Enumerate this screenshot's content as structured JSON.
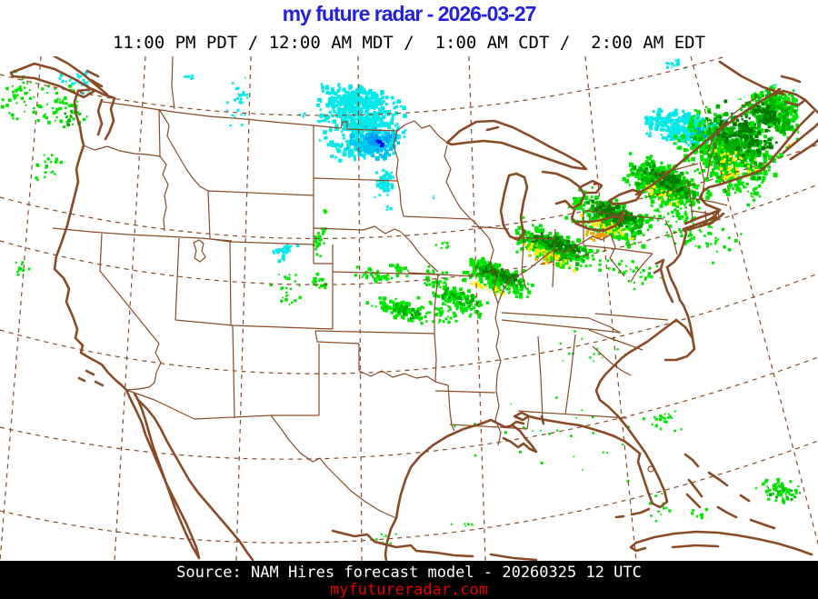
{
  "title": {
    "text": "my future radar - 2026-03-27",
    "color": "#2222dd"
  },
  "subtitle": "11:00 PM PDT / 12:00 AM MDT /  1:00 AM CDT /  2:00 AM EDT",
  "footer": {
    "source": "Source: NAM Hires forecast model - 20260325 12 UTC",
    "website": "myfutureradar.com",
    "source_color": "#ffffff",
    "website_color": "#e00000",
    "bar_color": "#000000"
  },
  "map": {
    "background": "#ffffff",
    "line_color": "#8a4a26",
    "palette": {
      "lg": "#04e304",
      "mg": "#02b002",
      "dg": "#027a02",
      "yl": "#fdec02",
      "gd": "#e5b500",
      "or": "#fd9500",
      "rd": "#f40000",
      "cy": "#04e9e7",
      "c2": "#00c4f0",
      "bl": "#0197f4",
      "db": "#0303f4"
    },
    "precip_cells": [
      {
        "c": [
          400,
          138
        ],
        "r": [
          50,
          40
        ],
        "rot": -5,
        "n": 420,
        "s": 3.4,
        "col": "cy"
      },
      {
        "c": [
          385,
          112
        ],
        "r": [
          38,
          22
        ],
        "rot": 0,
        "n": 200,
        "s": 3.2,
        "col": "cy"
      },
      {
        "c": [
          412,
          155
        ],
        "r": [
          30,
          20
        ],
        "rot": 10,
        "n": 120,
        "s": 3.4,
        "col": "c2"
      },
      {
        "c": [
          415,
          156
        ],
        "r": [
          14,
          9
        ],
        "rot": 10,
        "n": 26,
        "s": 3,
        "col": "bl"
      },
      {
        "c": [
          419,
          158
        ],
        "r": [
          6,
          4
        ],
        "rot": 0,
        "n": 7,
        "s": 2.6,
        "col": "db"
      },
      {
        "c": [
          424,
          200
        ],
        "r": [
          11,
          20
        ],
        "rot": 5,
        "n": 60,
        "s": 3,
        "col": "cy"
      },
      {
        "c": [
          427,
          230
        ],
        "r": [
          4,
          4
        ],
        "rot": 0,
        "n": 4,
        "s": 2.6,
        "col": "cy"
      },
      {
        "c": [
          355,
          133
        ],
        "r": [
          7,
          5
        ],
        "rot": 0,
        "n": 6,
        "s": 2.4,
        "col": "cy"
      },
      {
        "c": [
          477,
          217
        ],
        "r": [
          3,
          2
        ],
        "rot": 0,
        "n": 2,
        "s": 2.2,
        "col": "cy"
      },
      {
        "c": [
          333,
          127
        ],
        "r": [
          6,
          4
        ],
        "rot": 0,
        "n": 5,
        "s": 2.2,
        "col": "cy"
      },
      {
        "c": [
          755,
          142
        ],
        "r": [
          46,
          21
        ],
        "rot": 8,
        "n": 260,
        "s": 3.3,
        "col": "cy"
      },
      {
        "c": [
          772,
          146
        ],
        "r": [
          17,
          8
        ],
        "rot": 8,
        "n": 18,
        "s": 2.6,
        "col": "bl"
      },
      {
        "c": [
          722,
          132
        ],
        "r": [
          14,
          11
        ],
        "rot": 0,
        "n": 25,
        "s": 2.6,
        "col": "cy"
      },
      {
        "c": [
          745,
          72
        ],
        "r": [
          16,
          8
        ],
        "rot": 0,
        "n": 16,
        "s": 2.4,
        "col": "cy"
      },
      {
        "c": [
          848,
          92
        ],
        "r": [
          16,
          6
        ],
        "rot": 10,
        "n": 14,
        "s": 2.4,
        "col": "cy"
      },
      {
        "c": [
          262,
          112
        ],
        "r": [
          20,
          30
        ],
        "rot": 0,
        "n": 26,
        "s": 2.4,
        "col": "cy"
      },
      {
        "c": [
          205,
          83
        ],
        "r": [
          12,
          5
        ],
        "rot": 0,
        "n": 7,
        "s": 2.2,
        "col": "cy"
      },
      {
        "c": [
          88,
          90
        ],
        "r": [
          26,
          13
        ],
        "rot": 15,
        "n": 30,
        "s": 2.6,
        "col": "cy"
      },
      {
        "c": [
          314,
          275
        ],
        "r": [
          17,
          10
        ],
        "rot": -30,
        "n": 30,
        "s": 2.8,
        "col": "cy"
      },
      {
        "c": [
          24,
          105
        ],
        "r": [
          26,
          32
        ],
        "rot": 0,
        "n": 40,
        "s": 2.6,
        "col": "lg"
      },
      {
        "c": [
          68,
          118
        ],
        "r": [
          30,
          26
        ],
        "rot": 0,
        "n": 55,
        "s": 2.8,
        "col": "lg"
      },
      {
        "c": [
          80,
          128
        ],
        "r": [
          14,
          10
        ],
        "rot": 0,
        "n": 10,
        "s": 2.6,
        "col": "mg"
      },
      {
        "c": [
          52,
          185
        ],
        "r": [
          17,
          22
        ],
        "rot": 0,
        "n": 22,
        "s": 2.4,
        "col": "lg"
      },
      {
        "c": [
          22,
          298
        ],
        "r": [
          15,
          11
        ],
        "rot": 0,
        "n": 12,
        "s": 2.4,
        "col": "lg"
      },
      {
        "c": [
          352,
          265
        ],
        "r": [
          8,
          23
        ],
        "rot": 12,
        "n": 30,
        "s": 2.6,
        "col": "lg"
      },
      {
        "c": [
          350,
          310
        ],
        "r": [
          16,
          8
        ],
        "rot": 30,
        "n": 22,
        "s": 2.6,
        "col": "lg"
      },
      {
        "c": [
          315,
          320
        ],
        "r": [
          18,
          22
        ],
        "rot": 0,
        "n": 24,
        "s": 2.4,
        "col": "lg"
      },
      {
        "c": [
          360,
          233
        ],
        "r": [
          5,
          4
        ],
        "rot": 0,
        "n": 4,
        "s": 2.2,
        "col": "lg"
      },
      {
        "c": [
          413,
          303
        ],
        "r": [
          27,
          7
        ],
        "rot": 12,
        "n": 40,
        "s": 2.6,
        "col": "lg"
      },
      {
        "c": [
          440,
          297
        ],
        "r": [
          16,
          6
        ],
        "rot": 25,
        "n": 20,
        "s": 2.6,
        "col": "lg"
      },
      {
        "c": [
          438,
          340
        ],
        "r": [
          36,
          11
        ],
        "rot": 18,
        "n": 90,
        "s": 3,
        "col": "lg"
      },
      {
        "c": [
          445,
          342
        ],
        "r": [
          22,
          7
        ],
        "rot": 18,
        "n": 25,
        "s": 2.8,
        "col": "mg"
      },
      {
        "c": [
          482,
          308
        ],
        "r": [
          20,
          12
        ],
        "rot": 20,
        "n": 35,
        "s": 2.6,
        "col": "lg"
      },
      {
        "c": [
          487,
          270
        ],
        "r": [
          10,
          6
        ],
        "rot": 0,
        "n": 8,
        "s": 2.2,
        "col": "lg"
      },
      {
        "c": [
          480,
          345
        ],
        "r": [
          30,
          14
        ],
        "rot": 20,
        "n": 40,
        "s": 2.4,
        "col": "lg"
      },
      {
        "c": [
          505,
          330
        ],
        "r": [
          34,
          14
        ],
        "rot": 20,
        "n": 110,
        "s": 3,
        "col": "lg"
      },
      {
        "c": [
          508,
          328
        ],
        "r": [
          22,
          8
        ],
        "rot": 20,
        "n": 30,
        "s": 2.8,
        "col": "mg"
      },
      {
        "c": [
          548,
          306
        ],
        "r": [
          42,
          18
        ],
        "rot": 20,
        "n": 180,
        "s": 3.2,
        "col": "lg"
      },
      {
        "c": [
          550,
          304
        ],
        "r": [
          34,
          11
        ],
        "rot": 20,
        "n": 80,
        "s": 3.2,
        "col": "mg"
      },
      {
        "c": [
          552,
          302
        ],
        "r": [
          26,
          7
        ],
        "rot": 20,
        "n": 35,
        "s": 3,
        "col": "dg"
      },
      {
        "c": [
          537,
          318
        ],
        "r": [
          26,
          6
        ],
        "rot": 20,
        "n": 30,
        "s": 2.4,
        "col": "yl"
      },
      {
        "c": [
          608,
          272
        ],
        "r": [
          48,
          20
        ],
        "rot": 22,
        "n": 220,
        "s": 3.4,
        "col": "lg"
      },
      {
        "c": [
          610,
          270
        ],
        "r": [
          40,
          13
        ],
        "rot": 22,
        "n": 110,
        "s": 3.3,
        "col": "mg"
      },
      {
        "c": [
          612,
          268
        ],
        "r": [
          30,
          8
        ],
        "rot": 22,
        "n": 45,
        "s": 3,
        "col": "dg"
      },
      {
        "c": [
          604,
          280
        ],
        "r": [
          34,
          7
        ],
        "rot": 22,
        "n": 40,
        "s": 2.4,
        "col": "yl"
      },
      {
        "c": [
          600,
          287
        ],
        "r": [
          20,
          5
        ],
        "rot": 22,
        "n": 12,
        "s": 2.4,
        "col": "gd"
      },
      {
        "c": [
          672,
          240
        ],
        "r": [
          50,
          24
        ],
        "rot": 24,
        "n": 260,
        "s": 3.4,
        "col": "lg"
      },
      {
        "c": [
          674,
          238
        ],
        "r": [
          42,
          16
        ],
        "rot": 24,
        "n": 130,
        "s": 3.3,
        "col": "mg"
      },
      {
        "c": [
          676,
          236
        ],
        "r": [
          32,
          10
        ],
        "rot": 24,
        "n": 55,
        "s": 3.1,
        "col": "dg"
      },
      {
        "c": [
          668,
          250
        ],
        "r": [
          32,
          8
        ],
        "rot": 24,
        "n": 45,
        "s": 2.5,
        "col": "yl"
      },
      {
        "c": [
          658,
          258
        ],
        "r": [
          9,
          5
        ],
        "rot": 20,
        "n": 14,
        "s": 2.8,
        "col": "or"
      },
      {
        "c": [
          652,
          260
        ],
        "r": [
          12,
          5
        ],
        "rot": 20,
        "n": 12,
        "s": 2.4,
        "col": "gd"
      },
      {
        "c": [
          733,
          204
        ],
        "r": [
          52,
          26
        ],
        "rot": 27,
        "n": 280,
        "s": 3.4,
        "col": "lg"
      },
      {
        "c": [
          735,
          202
        ],
        "r": [
          44,
          17
        ],
        "rot": 27,
        "n": 140,
        "s": 3.3,
        "col": "mg"
      },
      {
        "c": [
          737,
          200
        ],
        "r": [
          32,
          10
        ],
        "rot": 27,
        "n": 55,
        "s": 3.1,
        "col": "dg"
      },
      {
        "c": [
          728,
          214
        ],
        "r": [
          26,
          7
        ],
        "rot": 27,
        "n": 30,
        "s": 2.4,
        "col": "yl"
      },
      {
        "c": [
          800,
          168
        ],
        "r": [
          60,
          42
        ],
        "rot": 30,
        "n": 420,
        "s": 3.5,
        "col": "lg"
      },
      {
        "c": [
          808,
          160
        ],
        "r": [
          48,
          30
        ],
        "rot": 30,
        "n": 200,
        "s": 3.4,
        "col": "mg"
      },
      {
        "c": [
          820,
          148
        ],
        "r": [
          38,
          22
        ],
        "rot": 30,
        "n": 90,
        "s": 3.2,
        "col": "dg"
      },
      {
        "c": [
          810,
          180
        ],
        "r": [
          28,
          16
        ],
        "rot": 30,
        "n": 30,
        "s": 2.5,
        "col": "yl"
      },
      {
        "c": [
          800,
          190
        ],
        "r": [
          14,
          10
        ],
        "rot": 0,
        "n": 14,
        "s": 2.5,
        "col": "yl"
      },
      {
        "c": [
          852,
          120
        ],
        "r": [
          42,
          32
        ],
        "rot": 30,
        "n": 240,
        "s": 3.5,
        "col": "lg"
      },
      {
        "c": [
          848,
          125
        ],
        "r": [
          32,
          22
        ],
        "rot": 30,
        "n": 110,
        "s": 3.3,
        "col": "mg"
      },
      {
        "c": [
          845,
          128
        ],
        "r": [
          22,
          14
        ],
        "rot": 30,
        "n": 45,
        "s": 3.1,
        "col": "dg"
      },
      {
        "c": [
          870,
          160
        ],
        "r": [
          4,
          3
        ],
        "rot": 0,
        "n": 3,
        "s": 2.4,
        "col": "gd"
      },
      {
        "c": [
          758,
          250
        ],
        "r": [
          60,
          26
        ],
        "rot": 25,
        "n": 90,
        "s": 2.6,
        "col": "lg"
      },
      {
        "c": [
          690,
          295
        ],
        "r": [
          45,
          20
        ],
        "rot": 20,
        "n": 40,
        "s": 2.4,
        "col": "lg"
      },
      {
        "c": [
          810,
          205
        ],
        "r": [
          30,
          12
        ],
        "rot": 25,
        "n": 30,
        "s": 2.5,
        "col": "lg"
      },
      {
        "c": [
          655,
          202
        ],
        "r": [
          2,
          1.5
        ],
        "rot": 0,
        "n": 2,
        "s": 2,
        "col": "rd"
      },
      {
        "c": [
          730,
          462
        ],
        "r": [
          26,
          13
        ],
        "rot": 0,
        "n": 22,
        "s": 2.4,
        "col": "lg"
      },
      {
        "c": [
          858,
          540
        ],
        "r": [
          30,
          15
        ],
        "rot": 8,
        "n": 55,
        "s": 2.7,
        "col": "lg"
      },
      {
        "c": [
          862,
          542
        ],
        "r": [
          18,
          9
        ],
        "rot": 8,
        "n": 14,
        "s": 2.4,
        "col": "mg"
      },
      {
        "c": [
          728,
          558
        ],
        "r": [
          15,
          18
        ],
        "rot": 0,
        "n": 16,
        "s": 2.3,
        "col": "lg"
      },
      {
        "c": [
          772,
          565
        ],
        "r": [
          11,
          7
        ],
        "rot": 0,
        "n": 8,
        "s": 2.3,
        "col": "lg"
      },
      {
        "c": [
          600,
          480
        ],
        "r": [
          120,
          55
        ],
        "rot": 0,
        "n": 26,
        "s": 2,
        "col": "lg"
      },
      {
        "c": [
          420,
          593
        ],
        "r": [
          25,
          8
        ],
        "rot": 0,
        "n": 7,
        "s": 2,
        "col": "lg"
      },
      {
        "c": [
          660,
          390
        ],
        "r": [
          60,
          30
        ],
        "rot": 0,
        "n": 14,
        "s": 2,
        "col": "lg"
      },
      {
        "c": [
          510,
          575
        ],
        "r": [
          20,
          8
        ],
        "rot": 0,
        "n": 6,
        "s": 2,
        "col": "lg"
      }
    ]
  }
}
